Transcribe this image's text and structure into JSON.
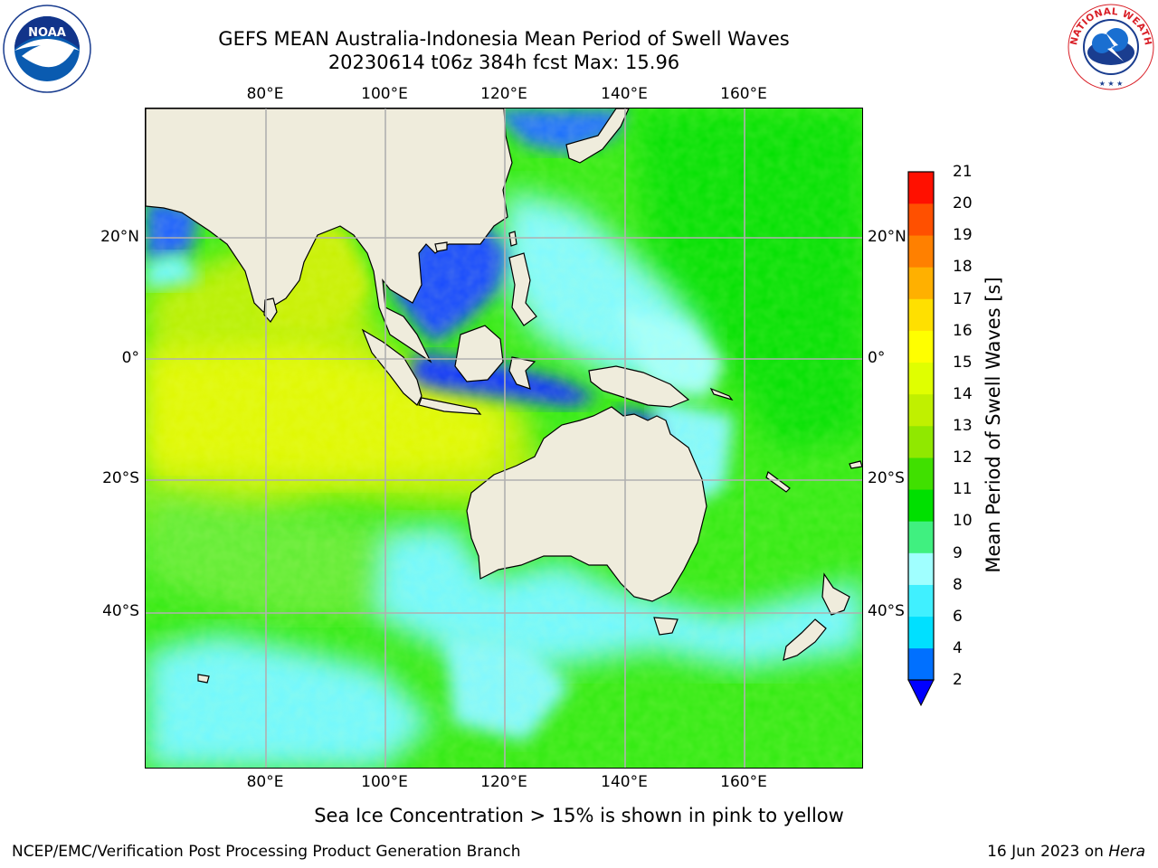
{
  "title": {
    "line1": "GEFS MEAN Australia-Indonesia Mean Period of Swell Waves",
    "line2": "20230614 t06z 384h fcst   Max: 15.96"
  },
  "map": {
    "region": "Australia-Indonesia",
    "lon_range": [
      60,
      180
    ],
    "lat_range": [
      -70,
      40
    ],
    "lon_ticks": [
      "80°E",
      "100°E",
      "120°E",
      "140°E",
      "160°E"
    ],
    "lat_ticks": [
      "20°N",
      "0°",
      "20°S",
      "40°S"
    ],
    "gridlines": true,
    "land_color": "#efecdc",
    "variable": "Mean Period of Swell Waves",
    "max_value": 15.96
  },
  "colorbar": {
    "label": "Mean Period of Swell Waves [s]",
    "levels": [
      "2",
      "4",
      "6",
      "8",
      "9",
      "10",
      "11",
      "12",
      "13",
      "14",
      "15",
      "16",
      "17",
      "18",
      "19",
      "20",
      "21"
    ],
    "colors": [
      "#0070ff",
      "#00e0ff",
      "#40f0ff",
      "#a0ffff",
      "#40f080",
      "#00e000",
      "#40e000",
      "#90e800",
      "#c0f000",
      "#e0ff00",
      "#ffff00",
      "#ffe000",
      "#ffb000",
      "#ff8000",
      "#ff5000",
      "#ff1000"
    ],
    "underflow_color": "#0000ff"
  },
  "footer": {
    "note": "Sea Ice Concentration > 15% is shown in pink to yellow",
    "left": "NCEP/EMC/Verification Post Processing Product Generation Branch",
    "date": "16 Jun 2023 on ",
    "host": "Hera"
  },
  "logos": {
    "left_text": "NOAA",
    "right_text": "NATIONAL WEATHER SERVICE"
  }
}
